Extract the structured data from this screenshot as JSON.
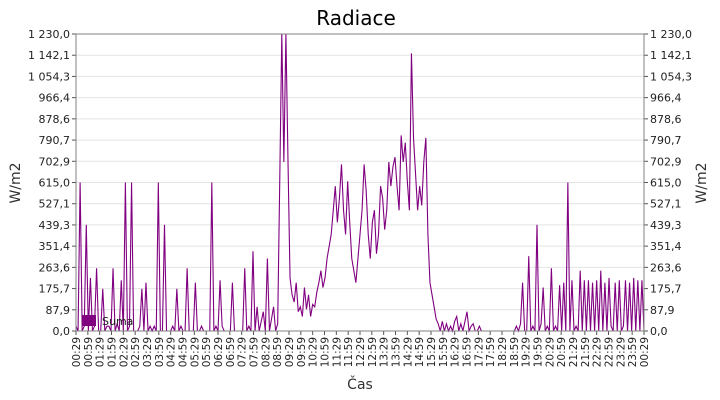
{
  "chart_data": {
    "type": "line",
    "title": "Radiace",
    "xlabel": "Čas",
    "ylabel": "W/m2",
    "ylabel_right": "W/m2",
    "ylim": [
      0,
      1230
    ],
    "y_ticks": [
      "0,0",
      "87,9",
      "175,7",
      "263,6",
      "351,4",
      "439,3",
      "527,1",
      "615,0",
      "702,9",
      "790,7",
      "878,6",
      "966,4",
      "1 054,3",
      "1 142,1",
      "1 230,0"
    ],
    "x_ticks": [
      "00:29",
      "00:59",
      "01:29",
      "01:59",
      "02:29",
      "02:59",
      "03:29",
      "03:59",
      "04:29",
      "04:59",
      "05:29",
      "05:59",
      "06:29",
      "06:59",
      "07:29",
      "07:59",
      "08:29",
      "08:59",
      "09:29",
      "09:59",
      "10:29",
      "10:59",
      "11:29",
      "11:59",
      "12:29",
      "12:59",
      "13:29",
      "13:59",
      "14:29",
      "14:59",
      "15:29",
      "15:59",
      "16:29",
      "16:59",
      "17:29",
      "17:59",
      "18:29",
      "18:59",
      "19:29",
      "19:59",
      "20:29",
      "20:59",
      "21:29",
      "21:59",
      "22:29",
      "22:59",
      "23:29",
      "23:59",
      "00:29"
    ],
    "series": [
      {
        "name": "Sum",
        "color": "#800080",
        "values": [
          20,
          0,
          615,
          0,
          20,
          440,
          0,
          220,
          0,
          20,
          260,
          0,
          0,
          175,
          0,
          20,
          20,
          0,
          260,
          0,
          30,
          0,
          210,
          0,
          615,
          0,
          20,
          615,
          0,
          0,
          0,
          20,
          175,
          0,
          200,
          0,
          20,
          0,
          20,
          0,
          615,
          0,
          0,
          440,
          0,
          0,
          0,
          20,
          0,
          175,
          0,
          20,
          0,
          0,
          260,
          0,
          0,
          0,
          200,
          0,
          0,
          20,
          0,
          0,
          0,
          0,
          615,
          0,
          20,
          0,
          210,
          20,
          0,
          0,
          0,
          0,
          200,
          0,
          0,
          0,
          0,
          0,
          260,
          0,
          20,
          0,
          330,
          0,
          100,
          0,
          40,
          80,
          0,
          300,
          0,
          50,
          100,
          0,
          30,
          620,
          1230,
          700,
          1230,
          710,
          220,
          150,
          120,
          200,
          80,
          100,
          60,
          180,
          90,
          150,
          60,
          110,
          100,
          160,
          200,
          250,
          180,
          220,
          300,
          350,
          400,
          500,
          600,
          450,
          550,
          690,
          500,
          400,
          620,
          450,
          300,
          250,
          200,
          300,
          400,
          500,
          690,
          580,
          400,
          300,
          450,
          500,
          320,
          400,
          600,
          550,
          420,
          500,
          700,
          600,
          680,
          720,
          600,
          500,
          810,
          700,
          780,
          620,
          500,
          1150,
          800,
          650,
          500,
          600,
          520,
          700,
          800,
          400,
          200,
          150,
          100,
          50,
          30,
          0,
          40,
          0,
          30,
          0,
          20,
          0,
          40,
          60,
          0,
          30,
          0,
          40,
          80,
          0,
          20,
          30,
          0,
          0,
          20,
          0,
          0,
          0,
          0,
          0,
          0,
          0,
          0,
          0,
          0,
          0,
          0,
          0,
          0,
          0,
          0,
          0,
          20,
          0,
          30,
          200,
          0,
          0,
          310,
          0,
          20,
          0,
          440,
          0,
          30,
          180,
          0,
          20,
          0,
          260,
          0,
          20,
          0,
          190,
          0,
          200,
          0,
          615,
          0,
          210,
          0,
          20,
          0,
          250,
          0,
          210,
          0,
          210,
          0,
          200,
          0,
          210,
          0,
          250,
          0,
          200,
          0,
          220,
          20,
          0,
          200,
          0,
          210,
          0,
          20,
          210,
          0,
          200,
          0,
          220,
          0,
          210,
          0,
          210,
          0
        ]
      }
    ],
    "legend": {
      "label": "Suma",
      "placement": "bottom-left"
    },
    "grid": true
  }
}
